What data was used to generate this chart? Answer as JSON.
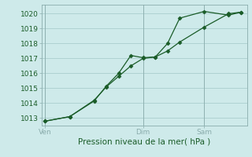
{
  "title": "",
  "xlabel": "Pression niveau de la mer( hPa )",
  "bg_color": "#ceeaea",
  "grid_color": "#aacece",
  "line_color": "#1a5c28",
  "marker_color": "#1a5c28",
  "spine_color": "#8aacac",
  "vline_color": "#8aacac",
  "ylim": [
    1012.5,
    1020.6
  ],
  "xlim": [
    -0.3,
    16.5
  ],
  "xtick_labels": [
    "Ven",
    "Dim",
    "Sam"
  ],
  "xtick_positions": [
    0,
    8,
    13
  ],
  "vline_positions": [
    0,
    8,
    13
  ],
  "series1_x": [
    0,
    2,
    4,
    5,
    6,
    7,
    8,
    9,
    10,
    11,
    13,
    15,
    16
  ],
  "series1_y": [
    1012.8,
    1013.1,
    1014.15,
    1015.15,
    1016.0,
    1017.2,
    1017.05,
    1017.1,
    1018.0,
    1019.7,
    1020.15,
    1019.9,
    1020.1
  ],
  "series2_x": [
    0,
    2,
    4,
    5,
    6,
    7,
    8,
    9,
    10,
    11,
    13,
    15,
    16
  ],
  "series2_y": [
    1012.8,
    1013.1,
    1014.2,
    1015.1,
    1015.8,
    1016.5,
    1017.0,
    1017.1,
    1017.5,
    1018.1,
    1019.1,
    1020.0,
    1020.1
  ],
  "ytick_values": [
    1013,
    1014,
    1015,
    1016,
    1017,
    1018,
    1019,
    1020
  ],
  "xlabel_fontsize": 7.5,
  "tick_fontsize": 6.5,
  "linewidth": 0.9,
  "markersize": 2.5
}
